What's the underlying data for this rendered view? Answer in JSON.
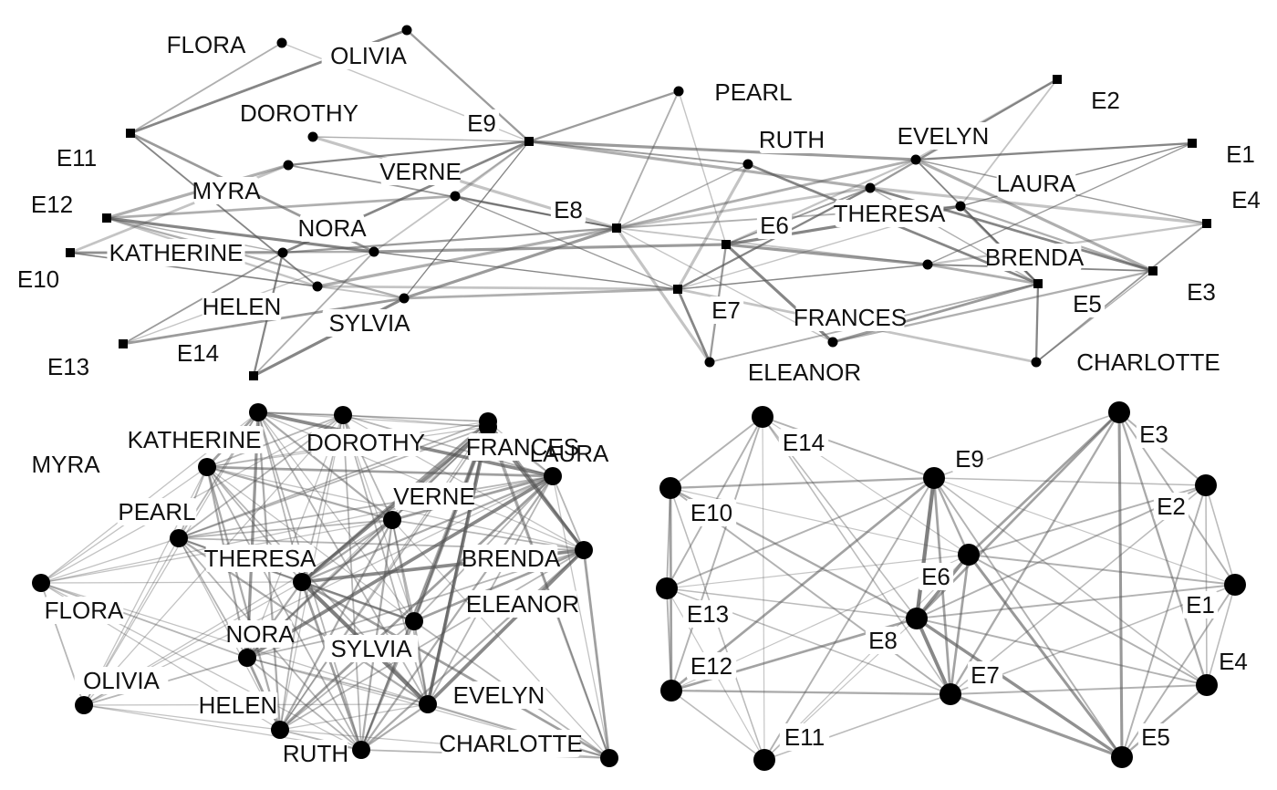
{
  "panels": [
    {
      "id": "bipartite",
      "nodes": [
        {
          "id": "FLORA",
          "kind": "woman",
          "label": "FLORA"
        },
        {
          "id": "OLIVIA",
          "kind": "woman",
          "label": "OLIVIA"
        },
        {
          "id": "DOROTHY",
          "kind": "woman",
          "label": "DOROTHY"
        },
        {
          "id": "MYRA",
          "kind": "woman",
          "label": "MYRA"
        },
        {
          "id": "VERNE",
          "kind": "woman",
          "label": "VERNE"
        },
        {
          "id": "NORA",
          "kind": "woman",
          "label": "NORA"
        },
        {
          "id": "KATHERINE",
          "kind": "woman",
          "label": "KATHERINE"
        },
        {
          "id": "HELEN",
          "kind": "woman",
          "label": "HELEN"
        },
        {
          "id": "SYLVIA",
          "kind": "woman",
          "label": "SYLVIA"
        },
        {
          "id": "PEARL",
          "kind": "woman",
          "label": "PEARL"
        },
        {
          "id": "RUTH",
          "kind": "woman",
          "label": "RUTH"
        },
        {
          "id": "EVELYN",
          "kind": "woman",
          "label": "EVELYN"
        },
        {
          "id": "LAURA",
          "kind": "woman",
          "label": "LAURA"
        },
        {
          "id": "THERESA",
          "kind": "woman",
          "label": "THERESA"
        },
        {
          "id": "BRENDA",
          "kind": "woman",
          "label": "BRENDA"
        },
        {
          "id": "FRANCES",
          "kind": "woman",
          "label": "FRANCES"
        },
        {
          "id": "ELEANOR",
          "kind": "woman",
          "label": "ELEANOR"
        },
        {
          "id": "CHARLOTTE",
          "kind": "woman",
          "label": "CHARLOTTE"
        },
        {
          "id": "E1",
          "kind": "event",
          "label": "E1"
        },
        {
          "id": "E2",
          "kind": "event",
          "label": "E2"
        },
        {
          "id": "E3",
          "kind": "event",
          "label": "E3"
        },
        {
          "id": "E4",
          "kind": "event",
          "label": "E4"
        },
        {
          "id": "E5",
          "kind": "event",
          "label": "E5"
        },
        {
          "id": "E6",
          "kind": "event",
          "label": "E6"
        },
        {
          "id": "E7",
          "kind": "event",
          "label": "E7"
        },
        {
          "id": "E8",
          "kind": "event",
          "label": "E8"
        },
        {
          "id": "E9",
          "kind": "event",
          "label": "E9"
        },
        {
          "id": "E10",
          "kind": "event",
          "label": "E10"
        },
        {
          "id": "E11",
          "kind": "event",
          "label": "E11"
        },
        {
          "id": "E12",
          "kind": "event",
          "label": "E12"
        },
        {
          "id": "E13",
          "kind": "event",
          "label": "E13"
        },
        {
          "id": "E14",
          "kind": "event",
          "label": "E14"
        }
      ],
      "edges": [
        [
          "FLORA",
          "E9"
        ],
        [
          "FLORA",
          "E11"
        ],
        [
          "OLIVIA",
          "E9"
        ],
        [
          "OLIVIA",
          "E11"
        ],
        [
          "DOROTHY",
          "E8"
        ],
        [
          "DOROTHY",
          "E9"
        ],
        [
          "MYRA",
          "E8"
        ],
        [
          "MYRA",
          "E9"
        ],
        [
          "MYRA",
          "E10"
        ],
        [
          "MYRA",
          "E12"
        ],
        [
          "VERNE",
          "E7"
        ],
        [
          "VERNE",
          "E8"
        ],
        [
          "VERNE",
          "E9"
        ],
        [
          "VERNE",
          "E12"
        ],
        [
          "NORA",
          "E6"
        ],
        [
          "NORA",
          "E7"
        ],
        [
          "NORA",
          "E9"
        ],
        [
          "NORA",
          "E10"
        ],
        [
          "NORA",
          "E11"
        ],
        [
          "NORA",
          "E12"
        ],
        [
          "NORA",
          "E13"
        ],
        [
          "NORA",
          "E14"
        ],
        [
          "KATHERINE",
          "E8"
        ],
        [
          "KATHERINE",
          "E9"
        ],
        [
          "KATHERINE",
          "E10"
        ],
        [
          "KATHERINE",
          "E12"
        ],
        [
          "KATHERINE",
          "E13"
        ],
        [
          "KATHERINE",
          "E14"
        ],
        [
          "HELEN",
          "E7"
        ],
        [
          "HELEN",
          "E8"
        ],
        [
          "HELEN",
          "E10"
        ],
        [
          "HELEN",
          "E11"
        ],
        [
          "HELEN",
          "E12"
        ],
        [
          "SYLVIA",
          "E7"
        ],
        [
          "SYLVIA",
          "E8"
        ],
        [
          "SYLVIA",
          "E9"
        ],
        [
          "SYLVIA",
          "E10"
        ],
        [
          "SYLVIA",
          "E12"
        ],
        [
          "SYLVIA",
          "E13"
        ],
        [
          "SYLVIA",
          "E14"
        ],
        [
          "PEARL",
          "E6"
        ],
        [
          "PEARL",
          "E8"
        ],
        [
          "PEARL",
          "E9"
        ],
        [
          "RUTH",
          "E5"
        ],
        [
          "RUTH",
          "E7"
        ],
        [
          "RUTH",
          "E8"
        ],
        [
          "RUTH",
          "E9"
        ],
        [
          "EVELYN",
          "E1"
        ],
        [
          "EVELYN",
          "E2"
        ],
        [
          "EVELYN",
          "E3"
        ],
        [
          "EVELYN",
          "E4"
        ],
        [
          "EVELYN",
          "E5"
        ],
        [
          "EVELYN",
          "E6"
        ],
        [
          "EVELYN",
          "E8"
        ],
        [
          "EVELYN",
          "E9"
        ],
        [
          "LAURA",
          "E1"
        ],
        [
          "LAURA",
          "E2"
        ],
        [
          "LAURA",
          "E3"
        ],
        [
          "LAURA",
          "E5"
        ],
        [
          "LAURA",
          "E6"
        ],
        [
          "LAURA",
          "E7"
        ],
        [
          "LAURA",
          "E8"
        ],
        [
          "THERESA",
          "E2"
        ],
        [
          "THERESA",
          "E3"
        ],
        [
          "THERESA",
          "E4"
        ],
        [
          "THERESA",
          "E5"
        ],
        [
          "THERESA",
          "E6"
        ],
        [
          "THERESA",
          "E7"
        ],
        [
          "THERESA",
          "E8"
        ],
        [
          "THERESA",
          "E9"
        ],
        [
          "BRENDA",
          "E1"
        ],
        [
          "BRENDA",
          "E3"
        ],
        [
          "BRENDA",
          "E4"
        ],
        [
          "BRENDA",
          "E5"
        ],
        [
          "BRENDA",
          "E6"
        ],
        [
          "BRENDA",
          "E7"
        ],
        [
          "BRENDA",
          "E8"
        ],
        [
          "FRANCES",
          "E3"
        ],
        [
          "FRANCES",
          "E5"
        ],
        [
          "FRANCES",
          "E6"
        ],
        [
          "FRANCES",
          "E8"
        ],
        [
          "ELEANOR",
          "E5"
        ],
        [
          "ELEANOR",
          "E6"
        ],
        [
          "ELEANOR",
          "E7"
        ],
        [
          "ELEANOR",
          "E8"
        ],
        [
          "CHARLOTTE",
          "E3"
        ],
        [
          "CHARLOTTE",
          "E4"
        ],
        [
          "CHARLOTTE",
          "E5"
        ],
        [
          "CHARLOTTE",
          "E7"
        ]
      ]
    },
    {
      "id": "women",
      "nodes": [
        {
          "id": "KATHERINE",
          "label": "KATHERINE"
        },
        {
          "id": "DOROTHY",
          "label": "DOROTHY"
        },
        {
          "id": "FRANCES",
          "label": "FRANCES"
        },
        {
          "id": "LAURA",
          "label": "LAURA"
        },
        {
          "id": "MYRA",
          "label": "MYRA"
        },
        {
          "id": "PEARL",
          "label": "PEARL"
        },
        {
          "id": "VERNE",
          "label": "VERNE"
        },
        {
          "id": "THERESA",
          "label": "THERESA"
        },
        {
          "id": "BRENDA",
          "label": "BRENDA"
        },
        {
          "id": "FLORA",
          "label": "FLORA"
        },
        {
          "id": "ELEANOR",
          "label": "ELEANOR"
        },
        {
          "id": "NORA",
          "label": "NORA"
        },
        {
          "id": "SYLVIA",
          "label": "SYLVIA"
        },
        {
          "id": "OLIVIA",
          "label": "OLIVIA"
        },
        {
          "id": "HELEN",
          "label": "HELEN"
        },
        {
          "id": "EVELYN",
          "label": "EVELYN"
        },
        {
          "id": "RUTH",
          "label": "RUTH"
        },
        {
          "id": "CHARLOTTE",
          "label": "CHARLOTTE"
        }
      ]
    },
    {
      "id": "events",
      "nodes": [
        {
          "id": "E14",
          "label": "E14"
        },
        {
          "id": "E3",
          "label": "E3"
        },
        {
          "id": "E9",
          "label": "E9"
        },
        {
          "id": "E10",
          "label": "E10"
        },
        {
          "id": "E2",
          "label": "E2"
        },
        {
          "id": "E6",
          "label": "E6"
        },
        {
          "id": "E1",
          "label": "E1"
        },
        {
          "id": "E13",
          "label": "E13"
        },
        {
          "id": "E8",
          "label": "E8"
        },
        {
          "id": "E12",
          "label": "E12"
        },
        {
          "id": "E7",
          "label": "E7"
        },
        {
          "id": "E4",
          "label": "E4"
        },
        {
          "id": "E11",
          "label": "E11"
        },
        {
          "id": "E5",
          "label": "E5"
        }
      ]
    }
  ],
  "colors": {
    "node": "#000000",
    "edge": "#555555",
    "label_bg": "#ffffff",
    "text": "#111111"
  }
}
